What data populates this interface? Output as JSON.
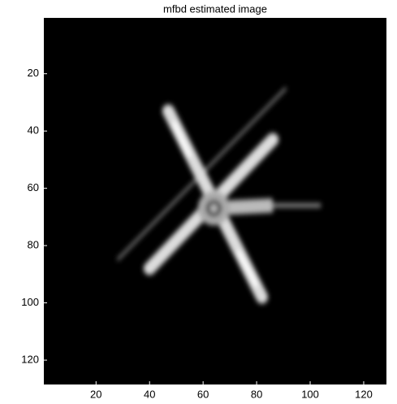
{
  "chart_data": {
    "type": "image",
    "title": "mfbd estimated image",
    "xlim": [
      0.5,
      128.5
    ],
    "ylim": [
      0.5,
      128.5
    ],
    "y_reversed": true,
    "xticks": [
      20,
      40,
      60,
      80,
      100,
      120
    ],
    "yticks": [
      20,
      40,
      60,
      80,
      100,
      120
    ]
  }
}
